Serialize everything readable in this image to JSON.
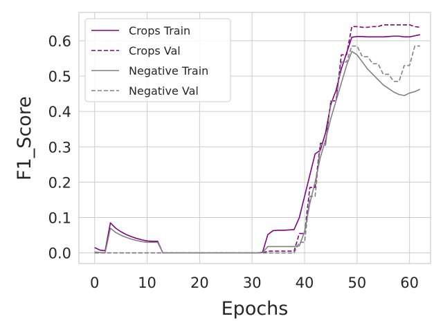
{
  "chart_data": {
    "type": "line",
    "title": "",
    "xlabel": "Epochs",
    "ylabel": "F1_Score",
    "xlim": [
      -3,
      64
    ],
    "ylim": [
      -0.03,
      0.68
    ],
    "xticks": [
      0,
      10,
      20,
      30,
      40,
      50,
      60
    ],
    "yticks": [
      0.0,
      0.1,
      0.2,
      0.3,
      0.4,
      0.5,
      0.6
    ],
    "ytick_labels": [
      "0.0",
      "0.1",
      "0.2",
      "0.3",
      "0.4",
      "0.5",
      "0.6"
    ],
    "grid": true,
    "legend_position": "top-left",
    "x": [
      0,
      1,
      2,
      3,
      4,
      5,
      6,
      7,
      8,
      9,
      10,
      11,
      12,
      13,
      14,
      15,
      16,
      17,
      18,
      19,
      20,
      21,
      22,
      23,
      24,
      25,
      26,
      27,
      28,
      29,
      30,
      31,
      32,
      33,
      34,
      35,
      36,
      37,
      38,
      39,
      40,
      41,
      42,
      43,
      44,
      45,
      46,
      47,
      48,
      49,
      50,
      51,
      52,
      53,
      54,
      55,
      56,
      57,
      58,
      59,
      60,
      61,
      62
    ],
    "series": [
      {
        "name": "Crops Train",
        "color": "#800080",
        "dash": "solid",
        "values": [
          0.015,
          0.008,
          0.006,
          0.085,
          0.07,
          0.06,
          0.052,
          0.046,
          0.041,
          0.037,
          0.034,
          0.033,
          0.033,
          0,
          0,
          0,
          0,
          0,
          0,
          0,
          0,
          0,
          0,
          0,
          0,
          0,
          0,
          0,
          0,
          0,
          0,
          0,
          0.002,
          0.052,
          0.063,
          0.064,
          0.064,
          0.065,
          0.066,
          0.1,
          0.16,
          0.22,
          0.28,
          0.29,
          0.34,
          0.42,
          0.46,
          0.52,
          0.565,
          0.61,
          0.612,
          0.612,
          0.611,
          0.611,
          0.611,
          0.611,
          0.612,
          0.613,
          0.613,
          0.611,
          0.611,
          0.614,
          0.617
        ]
      },
      {
        "name": "Crops Val",
        "color": "#800080",
        "dash": "dashed",
        "values": [
          0,
          0,
          0,
          0,
          0,
          0,
          0,
          0,
          0,
          0,
          0,
          0,
          0,
          0,
          0,
          0,
          0,
          0,
          0,
          0,
          0,
          0,
          0,
          0,
          0,
          0,
          0,
          0,
          0,
          0,
          0,
          0,
          0,
          0.005,
          0.005,
          0.005,
          0.005,
          0.005,
          0.005,
          0.055,
          0.055,
          0.185,
          0.185,
          0.31,
          0.31,
          0.43,
          0.43,
          0.56,
          0.56,
          0.64,
          0.64,
          0.638,
          0.638,
          0.64,
          0.64,
          0.645,
          0.645,
          0.645,
          0.645,
          0.645,
          0.645,
          0.64,
          0.638
        ]
      },
      {
        "name": "Negative Train",
        "color": "#808080",
        "dash": "solid",
        "values": [
          0.003,
          0.001,
          0.001,
          0.07,
          0.058,
          0.05,
          0.044,
          0.039,
          0.035,
          0.032,
          0.03,
          0.03,
          0.03,
          0,
          0,
          0,
          0,
          0,
          0,
          0,
          0,
          0,
          0,
          0,
          0,
          0,
          0,
          0,
          0,
          0,
          0,
          0,
          0.001,
          0.018,
          0.018,
          0.018,
          0.018,
          0.018,
          0.018,
          0.02,
          0.06,
          0.14,
          0.2,
          0.27,
          0.32,
          0.38,
          0.43,
          0.48,
          0.53,
          0.57,
          0.56,
          0.54,
          0.52,
          0.505,
          0.49,
          0.475,
          0.465,
          0.455,
          0.448,
          0.445,
          0.452,
          0.456,
          0.463
        ]
      },
      {
        "name": "Negative Val",
        "color": "#808080",
        "dash": "dashed",
        "values": [
          0,
          0,
          0,
          0,
          0,
          0,
          0,
          0,
          0,
          0,
          0,
          0,
          0,
          0,
          0,
          0,
          0,
          0,
          0,
          0,
          0,
          0,
          0,
          0,
          0,
          0,
          0,
          0,
          0,
          0,
          0,
          0,
          0,
          0,
          0,
          0,
          0,
          0,
          0,
          0.03,
          0.03,
          0.16,
          0.16,
          0.305,
          0.305,
          0.43,
          0.43,
          0.54,
          0.54,
          0.585,
          0.585,
          0.555,
          0.555,
          0.535,
          0.535,
          0.505,
          0.505,
          0.485,
          0.485,
          0.53,
          0.53,
          0.585,
          0.585
        ]
      }
    ]
  }
}
